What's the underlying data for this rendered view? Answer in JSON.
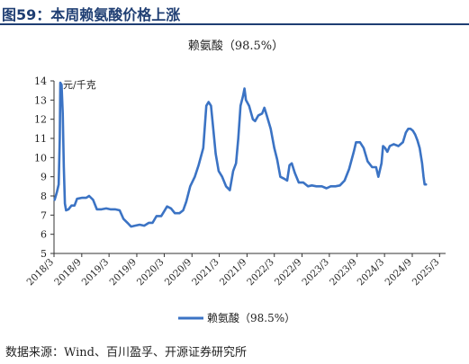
{
  "figure": {
    "title": "图59：本周赖氨酸价格上涨"
  },
  "source": "数据来源：Wind、百川盈孚、开源证券研究所",
  "colors": {
    "title": "#1f3e73",
    "line": "#3b73c4",
    "axis": "#333333"
  },
  "chart_data": {
    "type": "line",
    "title": "赖氨酸（98.5%）",
    "unit": "元/千克",
    "ylim": [
      5,
      14
    ],
    "yticks": [
      5,
      6,
      7,
      8,
      9,
      10,
      11,
      12,
      13,
      14
    ],
    "xlim": [
      "2018-03-01",
      "2025-04-10"
    ],
    "xticks": [
      "2018/3",
      "2018/9",
      "2019/3",
      "2019/9",
      "2020/3",
      "2020/9",
      "2021/3",
      "2021/9",
      "2022/3",
      "2022/9",
      "2023/3",
      "2023/9",
      "2024/3",
      "2024/9",
      "2025/3"
    ],
    "legend_position": "bottom-left",
    "grid": false,
    "series": [
      {
        "name": "赖氨酸（98.5%）",
        "points": [
          [
            "2018-03-05",
            7.8
          ],
          [
            "2018-03-20",
            8.2
          ],
          [
            "2018-04-01",
            8.6
          ],
          [
            "2018-04-08",
            11.0
          ],
          [
            "2018-04-12",
            13.9
          ],
          [
            "2018-04-20",
            13.8
          ],
          [
            "2018-04-28",
            12.3
          ],
          [
            "2018-05-05",
            9.5
          ],
          [
            "2018-05-12",
            7.6
          ],
          [
            "2018-05-20",
            7.25
          ],
          [
            "2018-06-05",
            7.3
          ],
          [
            "2018-06-25",
            7.5
          ],
          [
            "2018-07-15",
            7.5
          ],
          [
            "2018-08-01",
            7.85
          ],
          [
            "2018-09-01",
            7.9
          ],
          [
            "2018-10-01",
            7.9
          ],
          [
            "2018-10-20",
            8.0
          ],
          [
            "2018-11-15",
            7.8
          ],
          [
            "2018-12-10",
            7.3
          ],
          [
            "2019-01-10",
            7.3
          ],
          [
            "2019-02-10",
            7.35
          ],
          [
            "2019-03-10",
            7.3
          ],
          [
            "2019-04-10",
            7.3
          ],
          [
            "2019-05-10",
            7.25
          ],
          [
            "2019-06-05",
            6.8
          ],
          [
            "2019-07-01",
            6.6
          ],
          [
            "2019-07-25",
            6.4
          ],
          [
            "2019-08-20",
            6.45
          ],
          [
            "2019-09-20",
            6.5
          ],
          [
            "2019-10-20",
            6.45
          ],
          [
            "2019-11-20",
            6.6
          ],
          [
            "2019-12-15",
            6.6
          ],
          [
            "2020-01-10",
            6.95
          ],
          [
            "2020-02-10",
            6.95
          ],
          [
            "2020-03-01",
            7.2
          ],
          [
            "2020-03-20",
            7.45
          ],
          [
            "2020-04-15",
            7.35
          ],
          [
            "2020-05-10",
            7.1
          ],
          [
            "2020-06-10",
            7.1
          ],
          [
            "2020-07-05",
            7.25
          ],
          [
            "2020-07-25",
            7.7
          ],
          [
            "2020-08-20",
            8.5
          ],
          [
            "2020-09-20",
            9.0
          ],
          [
            "2020-10-15",
            9.6
          ],
          [
            "2020-11-15",
            10.5
          ],
          [
            "2020-12-05",
            12.7
          ],
          [
            "2020-12-20",
            12.9
          ],
          [
            "2021-01-05",
            12.7
          ],
          [
            "2021-01-20",
            11.5
          ],
          [
            "2021-02-05",
            10.2
          ],
          [
            "2021-02-25",
            9.3
          ],
          [
            "2021-03-20",
            9.0
          ],
          [
            "2021-04-15",
            8.5
          ],
          [
            "2021-05-10",
            8.3
          ],
          [
            "2021-06-01",
            9.3
          ],
          [
            "2021-06-20",
            9.7
          ],
          [
            "2021-07-05",
            11.0
          ],
          [
            "2021-07-20",
            12.7
          ],
          [
            "2021-08-05",
            13.2
          ],
          [
            "2021-08-15",
            13.6
          ],
          [
            "2021-08-25",
            13.0
          ],
          [
            "2021-09-15",
            12.7
          ],
          [
            "2021-10-10",
            12.0
          ],
          [
            "2021-10-25",
            11.9
          ],
          [
            "2021-11-15",
            12.2
          ],
          [
            "2021-12-10",
            12.3
          ],
          [
            "2021-12-25",
            12.6
          ],
          [
            "2022-01-10",
            12.2
          ],
          [
            "2022-02-05",
            11.5
          ],
          [
            "2022-03-01",
            10.5
          ],
          [
            "2022-03-20",
            9.9
          ],
          [
            "2022-04-10",
            9.0
          ],
          [
            "2022-05-05",
            8.9
          ],
          [
            "2022-05-25",
            8.8
          ],
          [
            "2022-06-10",
            9.6
          ],
          [
            "2022-06-25",
            9.7
          ],
          [
            "2022-07-15",
            9.2
          ],
          [
            "2022-08-10",
            8.7
          ],
          [
            "2022-09-10",
            8.7
          ],
          [
            "2022-10-10",
            8.5
          ],
          [
            "2022-11-05",
            8.55
          ],
          [
            "2022-12-05",
            8.5
          ],
          [
            "2023-01-10",
            8.5
          ],
          [
            "2023-02-10",
            8.4
          ],
          [
            "2023-03-10",
            8.5
          ],
          [
            "2023-04-10",
            8.5
          ],
          [
            "2023-05-10",
            8.55
          ],
          [
            "2023-06-10",
            8.8
          ],
          [
            "2023-07-10",
            9.4
          ],
          [
            "2023-08-10",
            10.3
          ],
          [
            "2023-08-25",
            10.8
          ],
          [
            "2023-09-20",
            10.8
          ],
          [
            "2023-10-15",
            10.5
          ],
          [
            "2023-11-10",
            9.8
          ],
          [
            "2023-12-10",
            9.5
          ],
          [
            "2024-01-05",
            9.5
          ],
          [
            "2024-01-20",
            9.0
          ],
          [
            "2024-02-10",
            9.7
          ],
          [
            "2024-02-20",
            10.6
          ],
          [
            "2024-03-05",
            10.5
          ],
          [
            "2024-03-20",
            10.3
          ],
          [
            "2024-04-05",
            10.6
          ],
          [
            "2024-05-01",
            10.7
          ],
          [
            "2024-06-01",
            10.6
          ],
          [
            "2024-07-01",
            10.8
          ],
          [
            "2024-07-20",
            11.3
          ],
          [
            "2024-08-05",
            11.5
          ],
          [
            "2024-08-20",
            11.5
          ],
          [
            "2024-09-05",
            11.4
          ],
          [
            "2024-09-20",
            11.2
          ],
          [
            "2024-10-05",
            10.9
          ],
          [
            "2024-10-20",
            10.5
          ],
          [
            "2024-11-05",
            9.7
          ],
          [
            "2024-11-15",
            9.0
          ],
          [
            "2024-11-22",
            8.6
          ],
          [
            "2024-12-01",
            8.6
          ]
        ]
      }
    ]
  }
}
